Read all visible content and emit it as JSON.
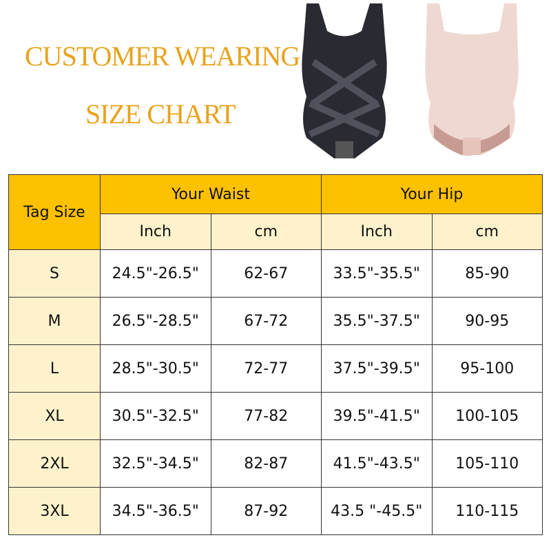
{
  "title": {
    "line1": "CUSTOMER WEARING",
    "line2": "SIZE CHART",
    "color": "#e8a31c"
  },
  "images": [
    {
      "name": "black-bodysuit",
      "color": "#2a2a33"
    },
    {
      "name": "nude-bodysuit",
      "color": "#e9c9c4"
    }
  ],
  "table": {
    "header_bg": "#fdc100",
    "subheader_bg": "#fef2cc",
    "tag_size": "Tag Size",
    "waist": "Your Waist",
    "hip": "Your Hip",
    "sub": [
      "Inch",
      "cm",
      "Inch",
      "cm"
    ],
    "rows": [
      [
        "S",
        "24.5\"-26.5\"",
        "62-67",
        "33.5\"-35.5\"",
        "85-90"
      ],
      [
        "M",
        "26.5\"-28.5\"",
        "67-72",
        "35.5\"-37.5\"",
        "90-95"
      ],
      [
        "L",
        "28.5\"-30.5\"",
        "72-77",
        "37.5\"-39.5\"",
        "95-100"
      ],
      [
        "XL",
        "30.5\"-32.5\"",
        "77-82",
        "39.5\"-41.5\"",
        "100-105"
      ],
      [
        "2XL",
        "32.5\"-34.5\"",
        "82-87",
        "41.5\"-43.5\"",
        "105-110"
      ],
      [
        "3XL",
        "34.5\"-36.5\"",
        "87-92",
        "43.5 \"-45.5\"",
        "110-115"
      ]
    ]
  }
}
